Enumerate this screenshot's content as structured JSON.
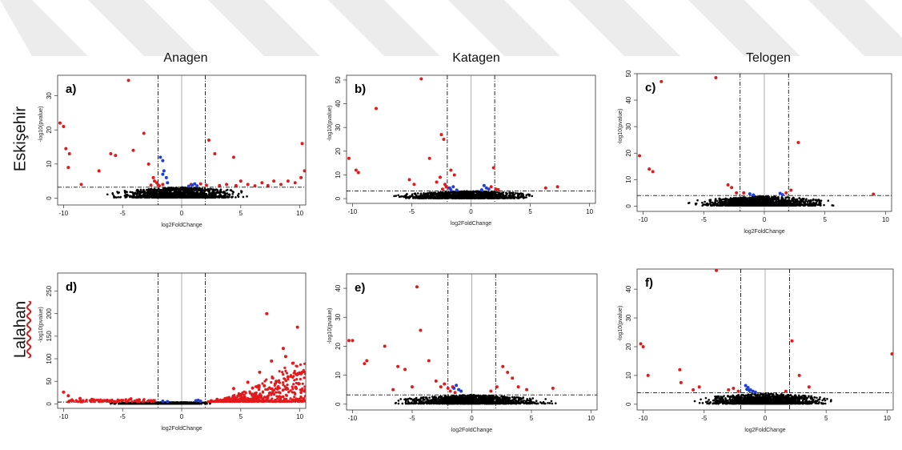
{
  "columns": [
    "Anagen",
    "Katagen",
    "Telogen"
  ],
  "rows": [
    "Eskişehir",
    "Lalahan"
  ],
  "colors": {
    "up_down": "#e31a1c",
    "significant_small": "#1f3fd6",
    "not_significant": "#000000",
    "watermark": "#ececec"
  },
  "chart_data": [
    {
      "type": "scatter",
      "panel_label": "a)",
      "xlabel": "log2FoldChange",
      "ylabel": "-log10(pvalue)",
      "xlim": [
        -10.5,
        10.5
      ],
      "ylim": [
        -2,
        36
      ],
      "xticks": [
        -10,
        -5,
        0,
        5,
        10
      ],
      "yticks": [
        0,
        10,
        20,
        30
      ],
      "fc_threshold": [
        -2,
        2
      ],
      "p_threshold": 3.2,
      "red_points": [
        [
          -10.3,
          22
        ],
        [
          -10,
          21
        ],
        [
          -9.8,
          14.5
        ],
        [
          -9.5,
          13
        ],
        [
          -9.6,
          9
        ],
        [
          -8.5,
          4
        ],
        [
          -7,
          8
        ],
        [
          -6,
          13
        ],
        [
          -5.6,
          12.5
        ],
        [
          -4.5,
          34.5
        ],
        [
          -4.1,
          14
        ],
        [
          -3.2,
          19
        ],
        [
          -2.8,
          10
        ],
        [
          -2.4,
          6
        ],
        [
          -2.6,
          3.8
        ],
        [
          -2.1,
          4.5
        ],
        [
          -1.9,
          3.6
        ],
        [
          -1.6,
          4
        ],
        [
          -2.3,
          5
        ],
        [
          -2,
          3.9
        ],
        [
          1.6,
          4.2
        ],
        [
          2.1,
          3.8
        ],
        [
          2.3,
          17
        ],
        [
          2.8,
          13
        ],
        [
          3.2,
          3.7
        ],
        [
          3.8,
          4
        ],
        [
          4.4,
          12
        ],
        [
          5,
          5
        ],
        [
          5.6,
          4
        ],
        [
          6.2,
          3.6
        ],
        [
          6.8,
          4.5
        ],
        [
          7.3,
          3.7
        ],
        [
          7.8,
          5
        ],
        [
          8.4,
          4
        ],
        [
          9,
          5
        ],
        [
          9.6,
          4.5
        ],
        [
          10.1,
          6
        ],
        [
          10.4,
          8
        ],
        [
          10.2,
          16
        ],
        [
          4.6,
          3.7
        ],
        [
          0.8,
          4
        ]
      ],
      "blue_points": [
        [
          -1.8,
          12
        ],
        [
          -1.6,
          11
        ],
        [
          -1.5,
          8
        ],
        [
          -1.3,
          6
        ],
        [
          -1.2,
          4.5
        ],
        [
          -1.6,
          7
        ],
        [
          0.9,
          3.8
        ],
        [
          1.1,
          4.2
        ],
        [
          1.3,
          3.6
        ],
        [
          0.6,
          3.5
        ]
      ],
      "black_cloud": {
        "x": [
          -6.5,
          6
        ],
        "y_max": 3.1
      }
    },
    {
      "type": "scatter",
      "panel_label": "b)",
      "xlabel": "log2FoldChange",
      "ylabel": "-log10(pvalue)",
      "xlim": [
        -10.5,
        10.5
      ],
      "ylim": [
        -2,
        52
      ],
      "xticks": [
        -10,
        -5,
        0,
        5,
        10
      ],
      "yticks": [
        0,
        10,
        20,
        30,
        40,
        50
      ],
      "fc_threshold": [
        -2,
        2
      ],
      "p_threshold": 3.2,
      "red_points": [
        [
          -10.3,
          17
        ],
        [
          -9.7,
          12
        ],
        [
          -9.5,
          11
        ],
        [
          -8,
          38
        ],
        [
          -4.2,
          50.5
        ],
        [
          -3.5,
          17
        ],
        [
          -2.5,
          27
        ],
        [
          -2.3,
          25
        ],
        [
          -2.9,
          7
        ],
        [
          -2.6,
          9
        ],
        [
          -2.1,
          5
        ],
        [
          -2.4,
          4
        ],
        [
          -2.2,
          6
        ],
        [
          -1.9,
          4.5
        ],
        [
          -1.7,
          12
        ],
        [
          -1.4,
          10
        ],
        [
          1.7,
          5
        ],
        [
          2.1,
          4
        ],
        [
          1.9,
          13
        ],
        [
          2.3,
          3.8
        ],
        [
          6.3,
          4.5
        ],
        [
          7.3,
          5
        ],
        [
          -5.2,
          8
        ],
        [
          -4.8,
          6
        ]
      ],
      "blue_points": [
        [
          -1.8,
          4.5
        ],
        [
          -1.5,
          5
        ],
        [
          -1.2,
          3.6
        ],
        [
          -1.7,
          3.7
        ],
        [
          1.1,
          5.5
        ],
        [
          1.3,
          4.5
        ],
        [
          0.9,
          3.7
        ],
        [
          1.5,
          4
        ]
      ],
      "black_cloud": {
        "x": [
          -7,
          6.2
        ],
        "y_max": 3.1
      }
    },
    {
      "type": "scatter",
      "panel_label": "c)",
      "xlabel": "log2FoldChange",
      "ylabel": "-log10(pvalue)",
      "xlim": [
        -10.5,
        10.5
      ],
      "ylim": [
        -2,
        50
      ],
      "xticks": [
        -10,
        -5,
        0,
        5,
        10
      ],
      "yticks": [
        0,
        10,
        20,
        30,
        40,
        50
      ],
      "fc_threshold": [
        -2,
        2
      ],
      "p_threshold": 4,
      "red_points": [
        [
          -10.3,
          19
        ],
        [
          -9.5,
          14
        ],
        [
          -9.2,
          13
        ],
        [
          -8.5,
          47
        ],
        [
          -4,
          48.5
        ],
        [
          -3,
          8
        ],
        [
          -2.7,
          7
        ],
        [
          -2.3,
          5
        ],
        [
          -1.7,
          5
        ],
        [
          1.8,
          5
        ],
        [
          2.2,
          6
        ],
        [
          2.8,
          24
        ],
        [
          9,
          4.5
        ]
      ],
      "blue_points": [
        [
          -1.2,
          4.6
        ],
        [
          -0.9,
          4.2
        ],
        [
          1.3,
          4.8
        ],
        [
          1.5,
          4.3
        ]
      ],
      "black_cloud": {
        "x": [
          -6.5,
          6
        ],
        "y_max": 3.6
      }
    },
    {
      "type": "scatter",
      "panel_label": "d)",
      "xlabel": "log2FoldChange",
      "ylabel": "-log10(pvalue)",
      "xlim": [
        -10.5,
        10.5
      ],
      "ylim": [
        -10,
        290
      ],
      "xticks": [
        -10,
        -5,
        0,
        5,
        10
      ],
      "yticks": [
        0,
        50,
        100,
        150,
        200,
        250
      ],
      "fc_threshold": [
        -2,
        2
      ],
      "p_threshold": 4,
      "red_points": [
        [
          -10,
          26
        ],
        [
          -9.6,
          18
        ],
        [
          -8.6,
          12
        ],
        [
          -7.6,
          10
        ],
        [
          -6.3,
          8
        ],
        [
          -5.3,
          7
        ],
        [
          -4.3,
          11
        ],
        [
          -3.6,
          9
        ],
        [
          -2.6,
          7
        ],
        [
          7.2,
          200
        ],
        [
          8.6,
          123
        ],
        [
          9.8,
          170
        ],
        [
          8.8,
          105
        ],
        [
          7.6,
          95
        ],
        [
          9.4,
          90
        ],
        [
          6.6,
          70
        ],
        [
          5.6,
          48
        ],
        [
          4.4,
          34
        ],
        [
          10.2,
          70
        ],
        [
          9,
          60
        ],
        [
          8,
          50
        ],
        [
          7,
          40
        ],
        [
          6,
          35
        ],
        [
          5,
          20
        ],
        [
          4,
          14
        ],
        [
          3,
          10
        ],
        [
          2.5,
          7
        ],
        [
          10.4,
          28
        ],
        [
          9.9,
          45
        ]
      ],
      "red_cloud": {
        "x": [
          2.1,
          10.5
        ],
        "y_max_at_end": 110
      },
      "blue_points": [
        [
          -1.6,
          6
        ],
        [
          -1.2,
          5
        ],
        [
          1.2,
          7
        ],
        [
          1.6,
          6
        ],
        [
          1.4,
          8
        ]
      ],
      "black_cloud": {
        "x": [
          -6.5,
          3
        ],
        "y_max": 3.5
      }
    },
    {
      "type": "scatter",
      "panel_label": "e)",
      "xlabel": "log2FoldChange",
      "ylabel": "-log10(pvalue)",
      "xlim": [
        -10.5,
        10.5
      ],
      "ylim": [
        -2,
        45
      ],
      "xticks": [
        -10,
        -5,
        0,
        5,
        10
      ],
      "yticks": [
        0,
        10,
        20,
        30,
        40
      ],
      "fc_threshold": [
        -2,
        2
      ],
      "p_threshold": 3.2,
      "red_points": [
        [
          -10.3,
          22
        ],
        [
          -10,
          22
        ],
        [
          -9,
          14
        ],
        [
          -8.8,
          15
        ],
        [
          -7.3,
          20
        ],
        [
          -6.2,
          13
        ],
        [
          -5.6,
          12
        ],
        [
          -4.6,
          40.5
        ],
        [
          -4.3,
          25.5
        ],
        [
          -3.6,
          15
        ],
        [
          -3,
          8
        ],
        [
          -2.6,
          6
        ],
        [
          -2.3,
          7
        ],
        [
          -2,
          5.5
        ],
        [
          -1.8,
          4.5
        ],
        [
          -1.6,
          6
        ],
        [
          -1.4,
          4
        ],
        [
          1.6,
          4.5
        ],
        [
          2.1,
          6
        ],
        [
          2.6,
          13
        ],
        [
          3,
          11
        ],
        [
          3.4,
          9
        ],
        [
          3.9,
          6
        ],
        [
          4.6,
          5
        ],
        [
          6.8,
          5.5
        ],
        [
          -5,
          6
        ],
        [
          -6.6,
          5
        ]
      ],
      "blue_points": [
        [
          -1.3,
          6.5
        ],
        [
          -1.1,
          5
        ],
        [
          -0.9,
          4.5
        ],
        [
          -1.5,
          5.5
        ]
      ],
      "black_cloud": {
        "x": [
          -7.5,
          7.5
        ],
        "y_max": 3.1
      }
    },
    {
      "type": "scatter",
      "panel_label": "f)",
      "xlabel": "log2FoldChange",
      "ylabel": "-log10(pvalue)",
      "xlim": [
        -10.5,
        10.5
      ],
      "ylim": [
        -2,
        47
      ],
      "xticks": [
        -10,
        -5,
        0,
        5,
        10
      ],
      "yticks": [
        0,
        10,
        20,
        30,
        40
      ],
      "fc_threshold": [
        -2,
        2
      ],
      "p_threshold": 4,
      "red_points": [
        [
          -10.2,
          21
        ],
        [
          -10,
          20
        ],
        [
          -9.6,
          10
        ],
        [
          -7,
          12
        ],
        [
          -6.9,
          7.5
        ],
        [
          -5.9,
          5
        ],
        [
          -5.4,
          6
        ],
        [
          -4,
          46.5
        ],
        [
          -3,
          5
        ],
        [
          -2.6,
          5.5
        ],
        [
          -2.2,
          4.5
        ],
        [
          1.7,
          4.5
        ],
        [
          2.2,
          22
        ],
        [
          2.8,
          10
        ],
        [
          3.6,
          6
        ],
        [
          10.4,
          17.5
        ]
      ],
      "blue_points": [
        [
          -1.6,
          6.5
        ],
        [
          -1.4,
          5.8
        ],
        [
          -1.2,
          5
        ],
        [
          -1.0,
          4.5
        ],
        [
          -0.8,
          4.2
        ],
        [
          -1.3,
          4.7
        ],
        [
          -1.5,
          5.2
        ]
      ],
      "black_cloud": {
        "x": [
          -6,
          6
        ],
        "y_max": 3.6
      }
    }
  ]
}
